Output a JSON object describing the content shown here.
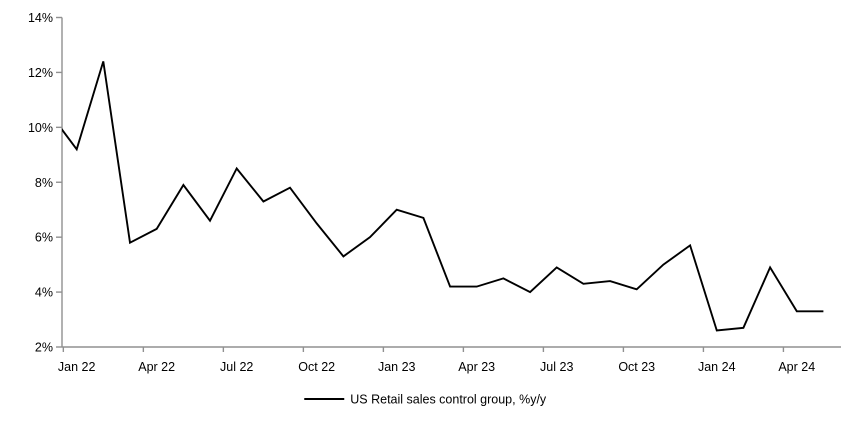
{
  "chart": {
    "legend_label": "US Retail sales control group, %y/y"
  },
  "chart_data": {
    "type": "line",
    "title": "",
    "xlabel": "",
    "ylabel": "",
    "ylim": [
      2,
      14
    ],
    "y_ticks": [
      2,
      4,
      6,
      8,
      10,
      12,
      14
    ],
    "y_tick_labels": [
      "2%",
      "4%",
      "6%",
      "8%",
      "10%",
      "12%",
      "14%"
    ],
    "x_tick_labels": [
      "Jan 22",
      "Apr 22",
      "Jul 22",
      "Oct 22",
      "Jan 23",
      "Apr 23",
      "Jul 23",
      "Oct 23",
      "Jan 24",
      "Apr 24"
    ],
    "grid": false,
    "legend_position": "bottom-center",
    "x": [
      "Dec 21",
      "Jan 22",
      "Feb 22",
      "Mar 22",
      "Apr 22",
      "May 22",
      "Jun 22",
      "Jul 22",
      "Aug 22",
      "Sep 22",
      "Oct 22",
      "Nov 22",
      "Dec 22",
      "Jan 23",
      "Feb 23",
      "Mar 23",
      "Apr 23",
      "May 23",
      "Jun 23",
      "Jul 23",
      "Aug 23",
      "Sep 23",
      "Oct 23",
      "Nov 23",
      "Dec 23",
      "Jan 24",
      "Feb 24",
      "Mar 24",
      "Apr 24",
      "May 24"
    ],
    "series": [
      {
        "name": "US Retail sales control group, %y/y",
        "color": "#000000",
        "values": [
          10.5,
          9.2,
          12.4,
          5.8,
          6.3,
          7.9,
          6.6,
          8.5,
          7.3,
          7.8,
          6.5,
          5.3,
          6.0,
          7.0,
          6.7,
          4.2,
          4.2,
          4.5,
          4.0,
          4.9,
          4.3,
          4.4,
          4.1,
          5.0,
          5.7,
          2.6,
          2.7,
          4.9,
          3.3,
          3.3
        ]
      }
    ],
    "axis_color": "#909090",
    "line_color": "#000000",
    "background": "#ffffff"
  }
}
